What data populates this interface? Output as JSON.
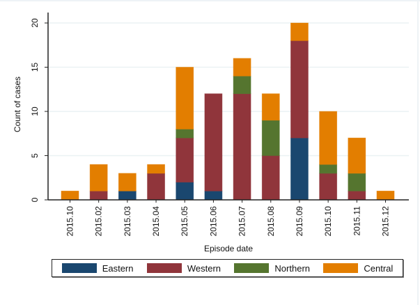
{
  "chart_data": {
    "type": "bar",
    "stacked": true,
    "title": "",
    "xlabel": "Episode date",
    "ylabel": "Count of cases",
    "ylim": [
      0,
      20
    ],
    "yticks": [
      "0",
      "5",
      "10",
      "15",
      "20"
    ],
    "ytick_values": [
      0,
      5,
      10,
      15,
      20
    ],
    "grid": true,
    "legend_position": "bottom",
    "categories": [
      "2015.10",
      "2015.02",
      "2015.03",
      "2015.04",
      "2015.05",
      "2015.06",
      "2015.07",
      "2015.08",
      "2015.09",
      "2015.10",
      "2015.11",
      "2015.12"
    ],
    "series": [
      {
        "name": "Eastern",
        "color": "#1a476f",
        "values": [
          0,
          0,
          1,
          0,
          2,
          1,
          0,
          0,
          7,
          0,
          0,
          0
        ]
      },
      {
        "name": "Western",
        "color": "#90353b",
        "values": [
          0,
          1,
          0,
          3,
          5,
          11,
          12,
          5,
          11,
          3,
          1,
          0
        ]
      },
      {
        "name": "Northern",
        "color": "#55752f",
        "values": [
          0,
          0,
          0,
          0,
          1,
          0,
          2,
          4,
          0,
          1,
          2,
          0
        ]
      },
      {
        "name": "Central",
        "color": "#e37e00",
        "values": [
          1,
          3,
          2,
          1,
          7,
          0,
          2,
          3,
          2,
          6,
          4,
          1
        ]
      }
    ]
  },
  "legend": {
    "items": [
      {
        "label": "Eastern",
        "color": "#1a476f"
      },
      {
        "label": "Western",
        "color": "#90353b"
      },
      {
        "label": "Northern",
        "color": "#55752f"
      },
      {
        "label": "Central",
        "color": "#e37e00"
      }
    ]
  }
}
